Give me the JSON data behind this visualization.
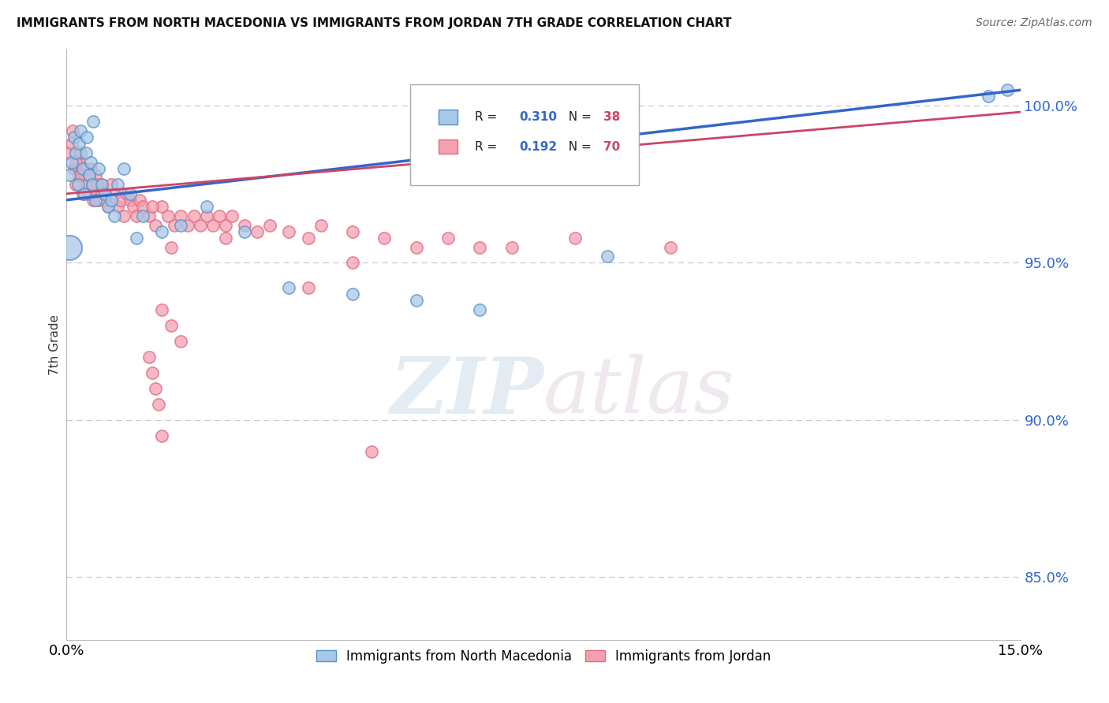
{
  "title": "IMMIGRANTS FROM NORTH MACEDONIA VS IMMIGRANTS FROM JORDAN 7TH GRADE CORRELATION CHART",
  "source": "Source: ZipAtlas.com",
  "ylabel": "7th Grade",
  "xlim": [
    0.0,
    15.0
  ],
  "ylim": [
    83.0,
    101.8
  ],
  "yticks": [
    85.0,
    90.0,
    95.0,
    100.0
  ],
  "ytick_labels": [
    "85.0%",
    "90.0%",
    "95.0%",
    "100.0%"
  ],
  "blue_label": "Immigrants from North Macedonia",
  "pink_label": "Immigrants from Jordan",
  "blue_R": "0.310",
  "blue_N": "38",
  "pink_R": "0.192",
  "pink_N": "70",
  "blue_color": "#a8c8e8",
  "pink_color": "#f4a0b0",
  "blue_edge_color": "#5590c8",
  "pink_edge_color": "#e06880",
  "blue_line_color": "#3366cc",
  "pink_line_color": "#cc4466",
  "blue_scatter_x": [
    0.05,
    0.08,
    0.12,
    0.15,
    0.18,
    0.2,
    0.22,
    0.25,
    0.28,
    0.3,
    0.32,
    0.35,
    0.38,
    0.4,
    0.42,
    0.45,
    0.5,
    0.55,
    0.6,
    0.65,
    0.7,
    0.75,
    0.8,
    0.9,
    1.0,
    1.1,
    1.2,
    1.5,
    1.8,
    2.2,
    2.8,
    3.5,
    4.5,
    5.5,
    6.5,
    8.5,
    14.5,
    14.8
  ],
  "blue_scatter_y": [
    97.8,
    98.2,
    99.0,
    98.5,
    97.5,
    98.8,
    99.2,
    98.0,
    97.2,
    98.5,
    99.0,
    97.8,
    98.2,
    97.5,
    99.5,
    97.0,
    98.0,
    97.5,
    97.2,
    96.8,
    97.0,
    96.5,
    97.5,
    98.0,
    97.2,
    95.8,
    96.5,
    96.0,
    96.2,
    96.8,
    96.0,
    94.2,
    94.0,
    93.8,
    93.5,
    95.2,
    100.3,
    100.5
  ],
  "blue_scatter_size_base": 120,
  "blue_large_x": 0.05,
  "blue_large_y": 95.5,
  "blue_large_size": 500,
  "pink_scatter_x": [
    0.05,
    0.08,
    0.1,
    0.12,
    0.15,
    0.18,
    0.2,
    0.22,
    0.25,
    0.28,
    0.3,
    0.32,
    0.35,
    0.38,
    0.4,
    0.42,
    0.45,
    0.48,
    0.5,
    0.55,
    0.6,
    0.65,
    0.7,
    0.75,
    0.8,
    0.85,
    0.9,
    0.95,
    1.0,
    1.05,
    1.1,
    1.15,
    1.2,
    1.3,
    1.4,
    1.5,
    1.6,
    1.7,
    1.8,
    1.9,
    2.0,
    2.1,
    2.2,
    2.3,
    2.4,
    2.5,
    2.6,
    2.8,
    3.0,
    3.2,
    3.5,
    3.8,
    4.0,
    4.5,
    5.0,
    5.5,
    6.0,
    7.0,
    8.0,
    9.5,
    1.65,
    0.55,
    1.35,
    0.48,
    0.22,
    0.15,
    0.6,
    0.35,
    4.5,
    6.5
  ],
  "pink_scatter_y": [
    98.5,
    98.8,
    99.2,
    98.0,
    97.5,
    98.2,
    97.8,
    98.5,
    97.2,
    97.8,
    98.0,
    97.5,
    97.2,
    98.0,
    97.5,
    97.0,
    97.8,
    97.2,
    97.0,
    97.5,
    97.2,
    96.8,
    97.5,
    97.2,
    96.8,
    97.0,
    96.5,
    97.2,
    97.0,
    96.8,
    96.5,
    97.0,
    96.8,
    96.5,
    96.2,
    96.8,
    96.5,
    96.2,
    96.5,
    96.2,
    96.5,
    96.2,
    96.5,
    96.2,
    96.5,
    96.2,
    96.5,
    96.2,
    96.0,
    96.2,
    96.0,
    95.8,
    96.2,
    96.0,
    95.8,
    95.5,
    95.8,
    95.5,
    95.8,
    95.5,
    95.5,
    97.2,
    96.8,
    97.5,
    97.8,
    98.2,
    97.0,
    97.8,
    95.0,
    95.5
  ],
  "pink_scatter_x2": [
    1.5,
    1.65,
    1.8,
    2.5,
    3.8
  ],
  "pink_scatter_y2": [
    93.5,
    93.0,
    92.5,
    95.8,
    94.2
  ],
  "pink_low_x": [
    1.3,
    1.35,
    1.4,
    1.45,
    1.5,
    4.8
  ],
  "pink_low_y": [
    92.0,
    91.5,
    91.0,
    90.5,
    89.5,
    89.0
  ],
  "blue_line_x0": 0.0,
  "blue_line_y0": 97.0,
  "blue_line_x1": 15.0,
  "blue_line_y1": 100.5,
  "pink_line_x0": 0.0,
  "pink_line_y0": 97.2,
  "pink_line_x1": 15.0,
  "pink_line_y1": 99.8,
  "watermark_zip": "ZIP",
  "watermark_atlas": "atlas",
  "background_color": "#ffffff"
}
